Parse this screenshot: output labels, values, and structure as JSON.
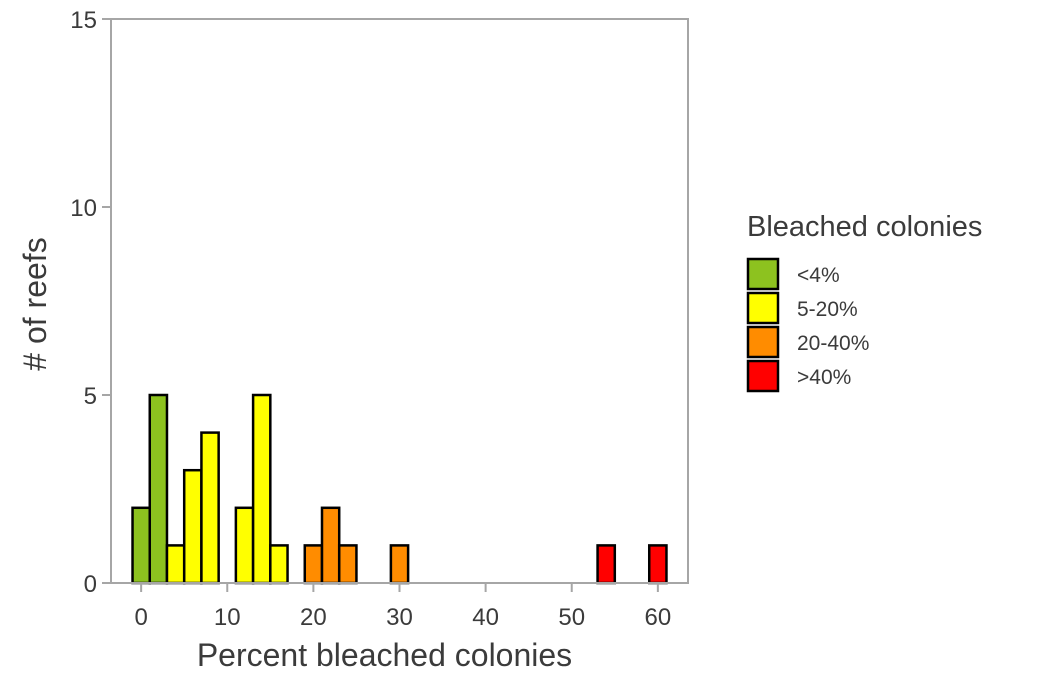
{
  "chart_data": {
    "type": "bar",
    "subtype": "histogram",
    "xlabel": "Percent bleached colonies",
    "ylabel": "# of reefs",
    "xlim": [
      -3.5,
      63.5
    ],
    "ylim": [
      0,
      15
    ],
    "x_ticks": [
      0,
      10,
      20,
      30,
      40,
      50,
      60
    ],
    "y_ticks": [
      0,
      5,
      10,
      15
    ],
    "bin_width": 2,
    "grid": false,
    "legend": {
      "title": "Bleached colonies",
      "position": "right",
      "entries": [
        {
          "label": "<4%",
          "color": "#8dc21f"
        },
        {
          "label": "5-20%",
          "color": "#ffff00"
        },
        {
          "label": "20-40%",
          "color": "#ff8c00"
        },
        {
          "label": ">40%",
          "color": "#ff0000"
        }
      ]
    },
    "series": [
      {
        "name": "<4%",
        "color": "#8dc21f",
        "bins": [
          {
            "x": 0,
            "count": 2
          },
          {
            "x": 2,
            "count": 5
          }
        ]
      },
      {
        "name": "5-20%",
        "color": "#ffff00",
        "bins": [
          {
            "x": 4,
            "count": 1
          },
          {
            "x": 6,
            "count": 3
          },
          {
            "x": 8,
            "count": 4
          },
          {
            "x": 12,
            "count": 2
          },
          {
            "x": 14,
            "count": 5
          },
          {
            "x": 16,
            "count": 1
          }
        ]
      },
      {
        "name": "20-40%",
        "color": "#ff8c00",
        "bins": [
          {
            "x": 20,
            "count": 1
          },
          {
            "x": 22,
            "count": 2
          },
          {
            "x": 24,
            "count": 1
          },
          {
            "x": 30,
            "count": 1
          }
        ]
      },
      {
        "name": ">40%",
        "color": "#ff0000",
        "bins": [
          {
            "x": 54,
            "count": 1
          },
          {
            "x": 60,
            "count": 1
          }
        ]
      }
    ]
  }
}
